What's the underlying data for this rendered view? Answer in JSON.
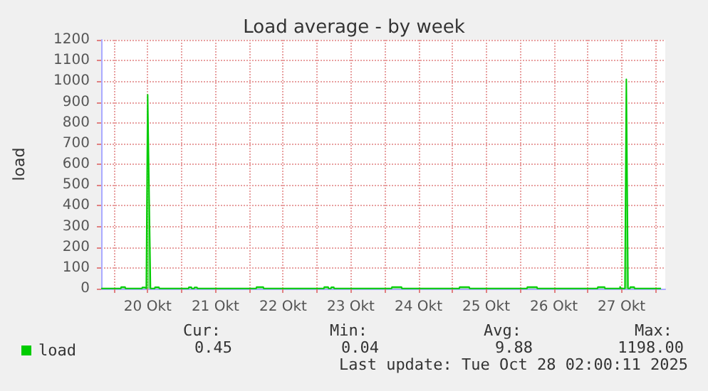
{
  "chart_data": {
    "type": "area",
    "title": "Load average - by week",
    "ylabel": "load",
    "legend": "bottom left",
    "grid": true,
    "marker": "none",
    "line_style": "solid",
    "xlim": [
      "2025-10-19T19:30",
      "2025-10-28T03:30"
    ],
    "ylim": [
      0,
      1200
    ],
    "yticks": [
      0,
      100,
      200,
      300,
      400,
      500,
      600,
      700,
      800,
      900,
      1000,
      1100,
      1200
    ],
    "xticks": [
      {
        "value": "2025-10-20T00:00",
        "label": null
      },
      {
        "value": "2025-10-20T12:00",
        "label": "20 Okt"
      },
      {
        "value": "2025-10-21T00:00",
        "label": null
      },
      {
        "value": "2025-10-21T12:00",
        "label": "21 Okt"
      },
      {
        "value": "2025-10-22T00:00",
        "label": null
      },
      {
        "value": "2025-10-22T12:00",
        "label": "22 Okt"
      },
      {
        "value": "2025-10-23T00:00",
        "label": null
      },
      {
        "value": "2025-10-23T12:00",
        "label": "23 Okt"
      },
      {
        "value": "2025-10-24T00:00",
        "label": null
      },
      {
        "value": "2025-10-24T12:00",
        "label": "24 Okt"
      },
      {
        "value": "2025-10-25T00:00",
        "label": null
      },
      {
        "value": "2025-10-25T12:00",
        "label": "25 Okt"
      },
      {
        "value": "2025-10-26T00:00",
        "label": null
      },
      {
        "value": "2025-10-26T12:00",
        "label": "26 Okt"
      },
      {
        "value": "2025-10-27T00:00",
        "label": null
      },
      {
        "value": "2025-10-27T12:00",
        "label": "27 Okt"
      },
      {
        "value": "2025-10-28T00:00",
        "label": null
      }
    ],
    "annotations": [
      "Cur:",
      "Min:",
      "Avg:",
      "Max:",
      "0.45",
      "0.04",
      "9.88",
      "1198.00",
      "Last update: Tue Oct 28 02:00:11 2025"
    ],
    "series": [
      {
        "name": "load",
        "color": "#00cc00",
        "x": [
          "2025-10-19T19:30",
          "2025-10-20T02:30",
          "2025-10-20T02:36",
          "2025-10-20T04:00",
          "2025-10-20T04:06",
          "2025-10-20T10:00",
          "2025-10-20T10:06",
          "2025-10-20T11:00",
          "2025-10-20T11:30",
          "2025-10-20T12:00",
          "2025-10-20T13:00",
          "2025-10-20T14:30",
          "2025-10-20T14:36",
          "2025-10-20T16:00",
          "2025-10-20T16:06",
          "2025-10-21T02:30",
          "2025-10-21T02:36",
          "2025-10-21T03:30",
          "2025-10-21T03:36",
          "2025-10-21T04:30",
          "2025-10-21T04:36",
          "2025-10-21T05:30",
          "2025-10-21T05:36",
          "2025-10-22T02:30",
          "2025-10-22T02:36",
          "2025-10-22T05:00",
          "2025-10-22T05:06",
          "2025-10-23T02:30",
          "2025-10-23T02:36",
          "2025-10-23T04:00",
          "2025-10-23T04:06",
          "2025-10-23T05:00",
          "2025-10-23T05:06",
          "2025-10-23T06:00",
          "2025-10-23T06:06",
          "2025-10-24T02:30",
          "2025-10-24T02:36",
          "2025-10-24T06:00",
          "2025-10-24T06:06",
          "2025-10-25T02:30",
          "2025-10-25T02:36",
          "2025-10-25T06:00",
          "2025-10-25T06:06",
          "2025-10-26T02:30",
          "2025-10-26T02:36",
          "2025-10-26T06:00",
          "2025-10-26T06:06",
          "2025-10-27T03:30",
          "2025-10-27T03:36",
          "2025-10-27T06:00",
          "2025-10-27T06:06",
          "2025-10-27T11:24",
          "2025-10-27T11:30",
          "2025-10-27T11:42",
          "2025-10-27T13:12",
          "2025-10-27T13:42",
          "2025-10-27T14:18",
          "2025-10-27T15:00",
          "2025-10-27T15:06",
          "2025-10-27T16:30",
          "2025-10-27T16:36",
          "2025-10-28T02:00"
        ],
        "values": [
          1,
          1,
          8,
          8,
          1,
          1,
          6,
          6,
          1,
          935,
          1,
          1,
          7,
          7,
          1,
          1,
          7,
          7,
          1,
          1,
          6,
          6,
          1,
          1,
          8,
          8,
          1,
          1,
          8,
          8,
          1,
          1,
          7,
          7,
          1,
          1,
          8,
          8,
          1,
          1,
          8,
          8,
          1,
          1,
          8,
          8,
          1,
          1,
          8,
          8,
          1,
          1,
          9,
          1,
          1,
          1010,
          1,
          1,
          8,
          8,
          1,
          1
        ]
      }
    ]
  }
}
